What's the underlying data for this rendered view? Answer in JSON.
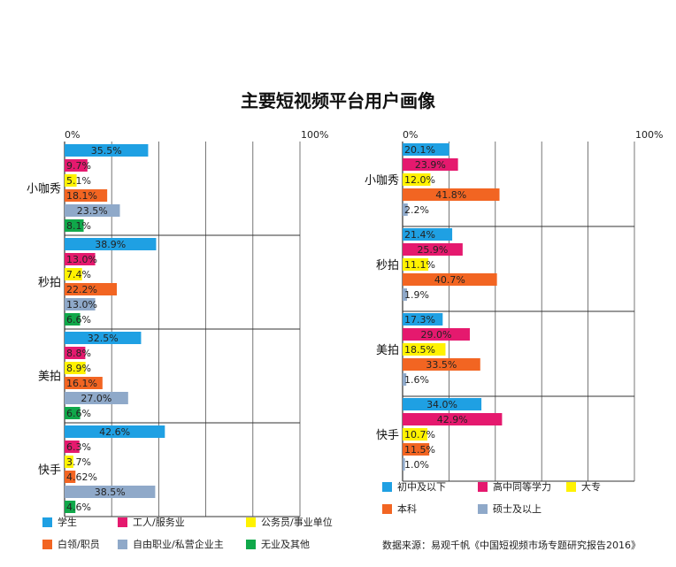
{
  "title": "主要短视频平台用户画像",
  "source": "数据来源：易观千帆《中国短视频市场专题研究报告2016》",
  "chart_data": [
    {
      "type": "bar",
      "orientation": "horizontal",
      "subject": "occupation",
      "xlim": [
        0,
        100
      ],
      "axis_min_label": "0%",
      "axis_max_label": "100%",
      "categories": [
        "小咖秀",
        "秒拍",
        "美拍",
        "快手"
      ],
      "series": [
        {
          "name": "学生",
          "color": "#1fa0e3",
          "values": [
            35.5,
            38.9,
            32.5,
            42.6
          ],
          "labels": [
            "35.5%",
            "38.9%",
            "32.5%",
            "42.6%"
          ]
        },
        {
          "name": "工人/服务业",
          "color": "#e5196e",
          "values": [
            9.7,
            13.0,
            8.8,
            6.3
          ],
          "labels": [
            "9.7%",
            "13.0%",
            "8.8%",
            "6.3%"
          ]
        },
        {
          "name": "公务员/事业单位",
          "color": "#fff200",
          "values": [
            5.1,
            7.4,
            8.9,
            3.7
          ],
          "labels": [
            "5.1%",
            "7.4%",
            "8.9%",
            "3.7%"
          ]
        },
        {
          "name": "白领/职员",
          "color": "#f26522",
          "values": [
            18.1,
            22.2,
            16.1,
            4.62
          ],
          "labels": [
            "18.1%",
            "22.2%",
            "16.1%",
            "4.62%"
          ]
        },
        {
          "name": "自由职业/私营企业主",
          "color": "#8fa9c9",
          "values": [
            23.5,
            13.0,
            27.0,
            38.5
          ],
          "labels": [
            "23.5%",
            "13.0%",
            "27.0%",
            "38.5%"
          ]
        },
        {
          "name": "无业及其他",
          "color": "#10a84a",
          "values": [
            8.1,
            6.6,
            6.6,
            4.6
          ],
          "labels": [
            "8.1%",
            "6.6%",
            "6.6%",
            "4.6%"
          ]
        }
      ]
    },
    {
      "type": "bar",
      "orientation": "horizontal",
      "subject": "education",
      "xlim": [
        0,
        100
      ],
      "axis_min_label": "0%",
      "axis_max_label": "100%",
      "categories": [
        "小咖秀",
        "秒拍",
        "美拍",
        "快手"
      ],
      "series": [
        {
          "name": "初中及以下",
          "color": "#1fa0e3",
          "values": [
            20.1,
            21.4,
            17.3,
            34.0
          ],
          "labels": [
            "20.1%",
            "21.4%",
            "17.3%",
            "34.0%"
          ]
        },
        {
          "name": "高中同等学力",
          "color": "#e5196e",
          "values": [
            23.9,
            25.9,
            29.0,
            42.9
          ],
          "labels": [
            "23.9%",
            "25.9%",
            "29.0%",
            "42.9%"
          ]
        },
        {
          "name": "大专",
          "color": "#fff200",
          "values": [
            12.0,
            11.1,
            18.5,
            10.7
          ],
          "labels": [
            "12.0%",
            "11.1%",
            "18.5%",
            "10.7%"
          ]
        },
        {
          "name": "本科",
          "color": "#f26522",
          "values": [
            41.8,
            40.7,
            33.5,
            11.5
          ],
          "labels": [
            "41.8%",
            "40.7%",
            "33.5%",
            "11.5%"
          ]
        },
        {
          "name": "硕士及以上",
          "color": "#8fa9c9",
          "values": [
            2.2,
            1.9,
            1.6,
            1.0
          ],
          "labels": [
            "2.2%",
            "1.9%",
            "1.6%",
            "1.0%"
          ]
        }
      ]
    }
  ]
}
